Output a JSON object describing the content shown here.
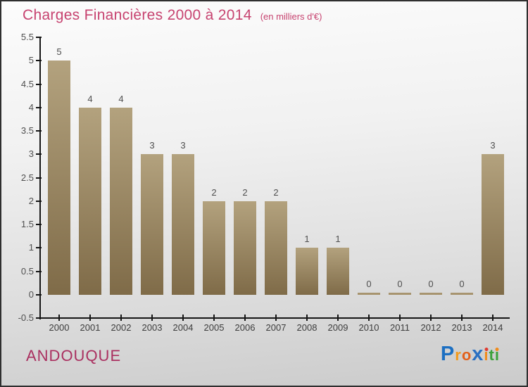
{
  "header": {
    "title": "Charges Financières 2000 à 2014",
    "subtitle": "(en milliers d'€)",
    "title_color": "#c74370"
  },
  "chart_data": {
    "type": "bar",
    "title": "Charges Financières 2000 à 2014",
    "subtitle": "(en milliers d'€)",
    "categories": [
      "2000",
      "2001",
      "2002",
      "2003",
      "2004",
      "2005",
      "2006",
      "2007",
      "2008",
      "2009",
      "2010",
      "2011",
      "2012",
      "2013",
      "2014"
    ],
    "values": [
      5,
      4,
      4,
      3,
      3,
      2,
      2,
      2,
      1,
      1,
      0,
      0,
      0,
      0,
      3
    ],
    "xlabel": "",
    "ylabel": "",
    "ylim": [
      -0.5,
      5.5
    ],
    "yticks": [
      5.5,
      5,
      4.5,
      4,
      3.5,
      3,
      2.5,
      2,
      1.5,
      1,
      0.5,
      0,
      -0.5
    ],
    "grid": false,
    "legend": false,
    "bar_color_top": "#b3a27e",
    "bar_color_bottom": "#7f6b48",
    "zero_bar_color": "#a7946f",
    "axis_color": "#161616",
    "value_label_color": "#4f4f4f"
  },
  "footer": {
    "entity": "ANDOUQUE",
    "entity_color": "#aa3060",
    "logo": {
      "text": "Proxiti",
      "letters": [
        {
          "char": "P",
          "color": "#1c6fc2",
          "size": 29
        },
        {
          "char": "r",
          "color": "#f29a1b",
          "size": 22
        },
        {
          "char": "o",
          "color": "#e2611c",
          "size": 22
        },
        {
          "char": "x",
          "color": "#2a70c2",
          "size": 29
        },
        {
          "char": "i",
          "color": "#f08c1e",
          "dot": "#e03c31",
          "size": 22
        },
        {
          "char": "t",
          "color": "#3da23c",
          "size": 22
        },
        {
          "char": "i",
          "color": "#3da23c",
          "dot": "#f08c1e",
          "size": 22
        }
      ]
    }
  }
}
